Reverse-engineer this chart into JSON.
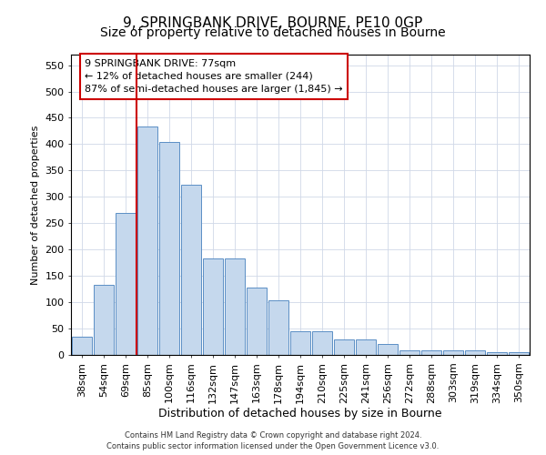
{
  "title1": "9, SPRINGBANK DRIVE, BOURNE, PE10 0GP",
  "title2": "Size of property relative to detached houses in Bourne",
  "xlabel": "Distribution of detached houses by size in Bourne",
  "ylabel": "Number of detached properties",
  "categories": [
    "38sqm",
    "54sqm",
    "69sqm",
    "85sqm",
    "100sqm",
    "116sqm",
    "132sqm",
    "147sqm",
    "163sqm",
    "178sqm",
    "194sqm",
    "210sqm",
    "225sqm",
    "241sqm",
    "256sqm",
    "272sqm",
    "288sqm",
    "303sqm",
    "319sqm",
    "334sqm",
    "350sqm"
  ],
  "values": [
    35,
    133,
    270,
    433,
    405,
    323,
    183,
    183,
    128,
    103,
    45,
    45,
    30,
    30,
    20,
    8,
    8,
    8,
    8,
    5,
    5
  ],
  "bar_color": "#c5d8ed",
  "bar_edge_color": "#5b8fc5",
  "vline_x_index": 3,
  "vline_color": "#cc0000",
  "annotation_line1": "9 SPRINGBANK DRIVE: 77sqm",
  "annotation_line2": "← 12% of detached houses are smaller (244)",
  "annotation_line3": "87% of semi-detached houses are larger (1,845) →",
  "annotation_box_color": "white",
  "annotation_box_edge": "#cc0000",
  "ylim_max": 570,
  "yticks": [
    0,
    50,
    100,
    150,
    200,
    250,
    300,
    350,
    400,
    450,
    500,
    550
  ],
  "footer1": "Contains HM Land Registry data © Crown copyright and database right 2024.",
  "footer2": "Contains public sector information licensed under the Open Government Licence v3.0.",
  "bg_color": "#ffffff",
  "plot_bg_color": "#ffffff",
  "grid_color": "#d0d8e8",
  "title1_fontsize": 11,
  "title2_fontsize": 10,
  "xlabel_fontsize": 9,
  "ylabel_fontsize": 8,
  "tick_fontsize": 8,
  "annot_fontsize": 8,
  "footer_fontsize": 6
}
